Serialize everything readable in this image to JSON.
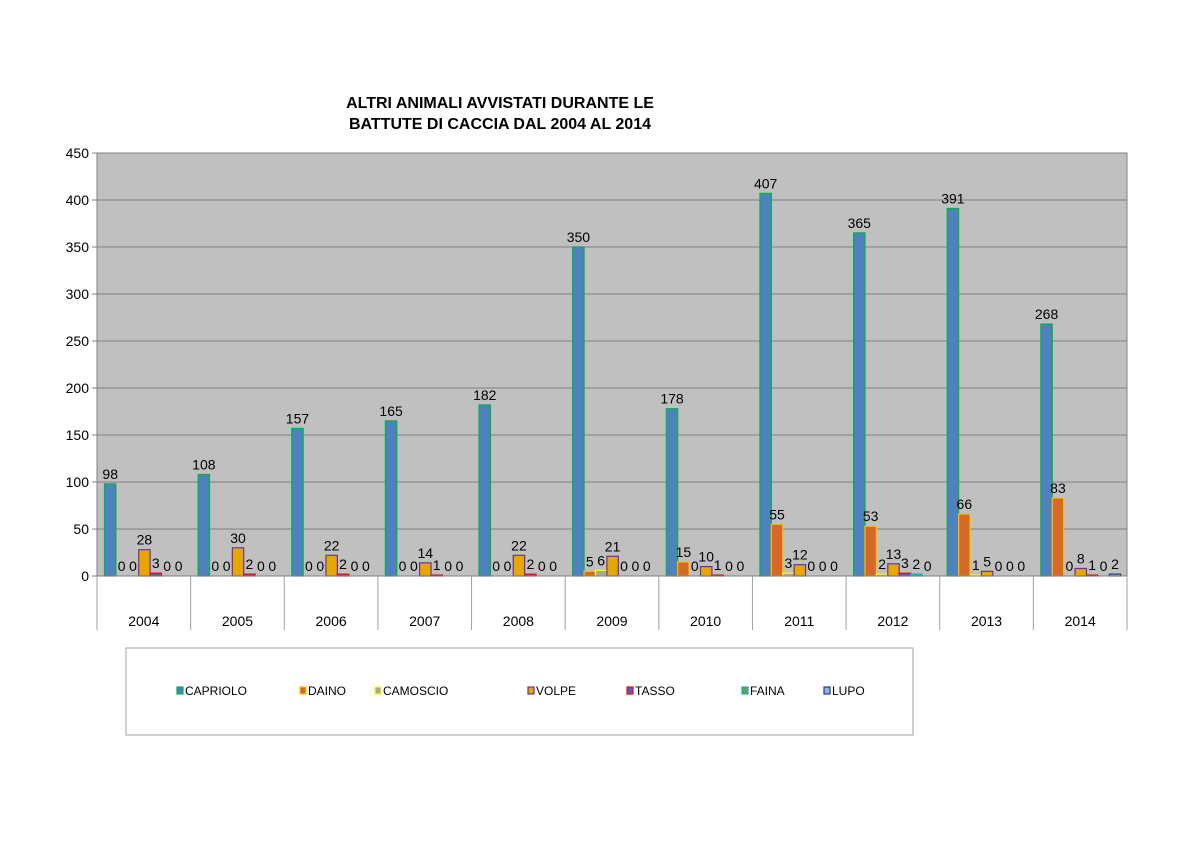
{
  "chart_data": {
    "type": "bar",
    "title_lines": [
      "ALTRI ANIMALI AVVISTATI DURANTE LE",
      "BATTUTE DI CACCIA DAL 2004 AL 2014"
    ],
    "categories": [
      "2004",
      "2005",
      "2006",
      "2007",
      "2008",
      "2009",
      "2010",
      "2011",
      "2012",
      "2013",
      "2014"
    ],
    "ylim": [
      0,
      450
    ],
    "yticks": [
      0,
      50,
      100,
      150,
      200,
      250,
      300,
      350,
      400,
      450
    ],
    "grid": true,
    "legend_placement": "bottom",
    "series": [
      {
        "name": "CAPRIOLO",
        "fill": "#4f81bd",
        "stroke": "#00b050",
        "values": [
          98,
          108,
          157,
          165,
          182,
          350,
          178,
          407,
          365,
          391,
          268
        ]
      },
      {
        "name": "DAINO",
        "fill": "#d4692a",
        "stroke": "#ffc000",
        "values": [
          0,
          0,
          0,
          0,
          0,
          5,
          15,
          55,
          53,
          66,
          83
        ]
      },
      {
        "name": "CAMOSCIO",
        "fill": "#a6a6a6",
        "stroke": "#ffff00",
        "values": [
          0,
          0,
          0,
          0,
          0,
          6,
          0,
          3,
          2,
          1,
          0
        ]
      },
      {
        "name": "VOLPE",
        "fill": "#e6a800",
        "stroke": "#7030a0",
        "values": [
          28,
          30,
          22,
          14,
          22,
          21,
          10,
          12,
          13,
          5,
          8
        ]
      },
      {
        "name": "TASSO",
        "fill": "#4f5fbd",
        "stroke": "#ff0000",
        "values": [
          3,
          2,
          2,
          1,
          2,
          0,
          1,
          0,
          3,
          0,
          1
        ]
      },
      {
        "name": "FAINA",
        "fill": "#70a040",
        "stroke": "#00b0f0",
        "values": [
          0,
          0,
          0,
          0,
          0,
          0,
          0,
          0,
          2,
          0,
          0
        ]
      },
      {
        "name": "LUPO",
        "fill": "#8db4e2",
        "stroke": "#1f3f7f",
        "values": [
          0,
          0,
          0,
          0,
          0,
          0,
          0,
          0,
          0,
          0,
          2
        ]
      }
    ]
  }
}
